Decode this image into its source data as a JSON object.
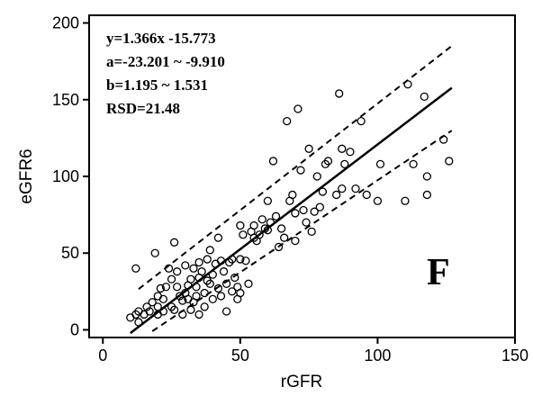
{
  "chart_data": {
    "type": "scatter",
    "xlabel": "rGFR",
    "ylabel": "eGFR6",
    "xlim": [
      -5,
      150
    ],
    "ylim": [
      -5,
      205
    ],
    "xticks": [
      0,
      50,
      100,
      150
    ],
    "yticks": [
      0,
      50,
      100,
      150,
      200
    ],
    "grid": false,
    "annotations": [
      "y=1.366x -15.773",
      "a=-23.201 ~ -9.910",
      "b=1.195 ~ 1.531",
      "RSD=21.48"
    ],
    "panel_label": "F",
    "fit_line": {
      "slope": 1.366,
      "intercept": -15.773,
      "x_range": [
        10,
        127
      ],
      "style": "solid"
    },
    "bounds": [
      {
        "slope": 1.39,
        "intercept": 8.5,
        "x_range": [
          13,
          127
        ],
        "style": "dashed"
      },
      {
        "slope": 1.2,
        "intercept": -22.5,
        "x_range": [
          18,
          127
        ],
        "style": "dashed"
      }
    ],
    "points": [
      [
        10,
        8
      ],
      [
        12,
        40
      ],
      [
        12,
        10
      ],
      [
        13,
        5
      ],
      [
        13,
        12
      ],
      [
        15,
        10
      ],
      [
        16,
        15
      ],
      [
        17,
        12
      ],
      [
        18,
        18
      ],
      [
        19,
        50
      ],
      [
        20,
        10
      ],
      [
        20,
        15
      ],
      [
        20,
        22
      ],
      [
        21,
        27
      ],
      [
        22,
        12
      ],
      [
        22,
        20
      ],
      [
        23,
        28
      ],
      [
        24,
        40
      ],
      [
        25,
        33
      ],
      [
        25,
        15
      ],
      [
        26,
        13
      ],
      [
        26,
        57
      ],
      [
        27,
        28
      ],
      [
        27,
        38
      ],
      [
        28,
        22
      ],
      [
        29,
        10
      ],
      [
        29,
        19
      ],
      [
        30,
        24
      ],
      [
        30,
        42
      ],
      [
        31,
        20
      ],
      [
        31,
        29
      ],
      [
        32,
        13
      ],
      [
        32,
        33
      ],
      [
        33,
        18
      ],
      [
        33,
        40
      ],
      [
        34,
        22
      ],
      [
        34,
        28
      ],
      [
        35,
        34
      ],
      [
        35,
        10
      ],
      [
        35,
        44
      ],
      [
        36,
        38
      ],
      [
        37,
        24
      ],
      [
        37,
        15
      ],
      [
        38,
        32
      ],
      [
        38,
        46
      ],
      [
        39,
        52
      ],
      [
        39,
        30
      ],
      [
        40,
        36
      ],
      [
        40,
        20
      ],
      [
        41,
        43
      ],
      [
        42,
        27
      ],
      [
        42,
        60
      ],
      [
        43,
        45
      ],
      [
        43,
        22
      ],
      [
        44,
        38
      ],
      [
        45,
        30
      ],
      [
        45,
        12
      ],
      [
        46,
        44
      ],
      [
        47,
        46
      ],
      [
        47,
        25
      ],
      [
        48,
        34
      ],
      [
        49,
        20
      ],
      [
        49,
        28
      ],
      [
        50,
        24
      ],
      [
        50,
        46
      ],
      [
        50,
        68
      ],
      [
        51,
        62
      ],
      [
        52,
        45
      ],
      [
        53,
        30
      ],
      [
        54,
        64
      ],
      [
        55,
        60
      ],
      [
        55,
        68
      ],
      [
        56,
        58
      ],
      [
        57,
        62
      ],
      [
        58,
        72
      ],
      [
        59,
        66
      ],
      [
        60,
        84
      ],
      [
        60,
        65
      ],
      [
        61,
        70
      ],
      [
        62,
        110
      ],
      [
        63,
        74
      ],
      [
        64,
        54
      ],
      [
        65,
        66
      ],
      [
        66,
        60
      ],
      [
        67,
        136
      ],
      [
        68,
        84
      ],
      [
        69,
        88
      ],
      [
        70,
        76
      ],
      [
        70,
        58
      ],
      [
        71,
        144
      ],
      [
        72,
        104
      ],
      [
        73,
        78
      ],
      [
        74,
        70
      ],
      [
        75,
        118
      ],
      [
        76,
        64
      ],
      [
        77,
        77
      ],
      [
        78,
        100
      ],
      [
        79,
        80
      ],
      [
        80,
        90
      ],
      [
        81,
        108
      ],
      [
        82,
        110
      ],
      [
        85,
        88
      ],
      [
        86,
        154
      ],
      [
        87,
        92
      ],
      [
        87,
        118
      ],
      [
        88,
        108
      ],
      [
        90,
        116
      ],
      [
        92,
        92
      ],
      [
        94,
        136
      ],
      [
        96,
        88
      ],
      [
        100,
        84
      ],
      [
        101,
        108
      ],
      [
        110,
        84
      ],
      [
        111,
        160
      ],
      [
        113,
        108
      ],
      [
        117,
        152
      ],
      [
        118,
        100
      ],
      [
        118,
        88
      ],
      [
        124,
        124
      ],
      [
        126,
        110
      ]
    ]
  }
}
